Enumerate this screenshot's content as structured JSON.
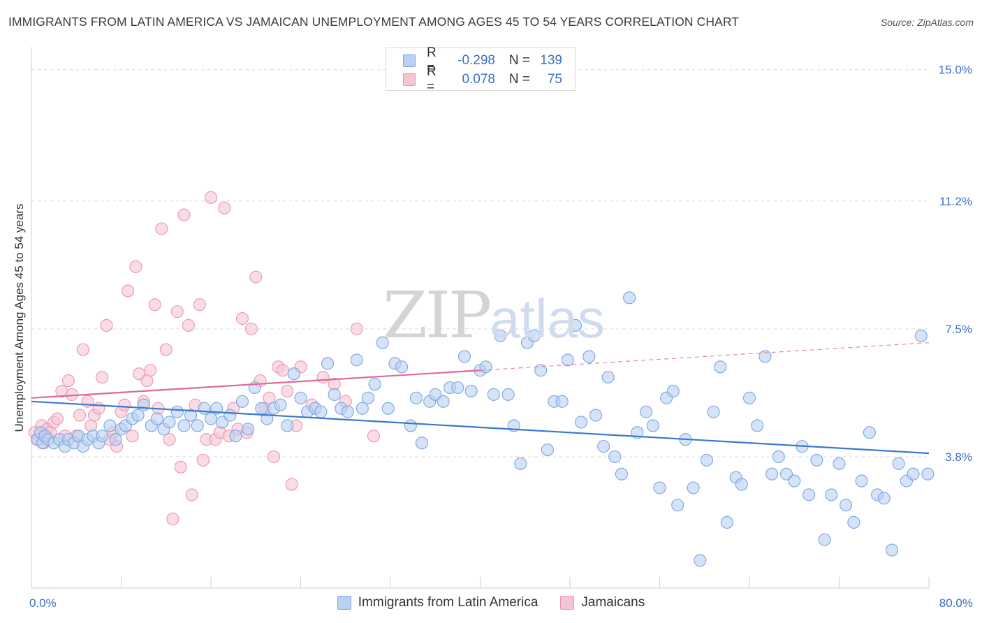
{
  "header": {
    "title": "IMMIGRANTS FROM LATIN AMERICA VS JAMAICAN UNEMPLOYMENT AMONG AGES 45 TO 54 YEARS CORRELATION CHART",
    "source": "Source: ZipAtlas.com"
  },
  "watermark": {
    "zip": "ZIP",
    "atlas": "atlas"
  },
  "legend_top": [
    {
      "r_label": "R =",
      "r_value": "-0.298",
      "n_label": "N =",
      "n_value": "139"
    },
    {
      "r_label": "R =",
      "r_value": "0.078",
      "n_label": "N =",
      "n_value": "75"
    }
  ],
  "colors": {
    "blue_fill": "#b9d1f2",
    "blue_stroke": "#7aa6e0",
    "blue_line": "#3a78d0",
    "pink_fill": "#f6c4d3",
    "pink_stroke": "#ec95b0",
    "pink_line": "#e0689a",
    "axis_text": "#3b6fc7",
    "grid": "#dcdcdc"
  },
  "chart_data": {
    "type": "scatter",
    "title": "IMMIGRANTS FROM LATIN AMERICA VS JAMAICAN UNEMPLOYMENT AMONG AGES 45 TO 54 YEARS CORRELATION CHART",
    "xlabel": "",
    "ylabel": "Unemployment Among Ages 45 to 54 years",
    "xlim": [
      0,
      80
    ],
    "ylim": [
      0,
      15.5
    ],
    "x_tick_labels": [
      "0.0%",
      "80.0%"
    ],
    "y_ticks": [
      3.8,
      7.5,
      11.2,
      15.0
    ],
    "y_tick_labels": [
      "3.8%",
      "7.5%",
      "11.2%",
      "15.0%"
    ],
    "grid": true,
    "legend_position": "bottom",
    "series": [
      {
        "name": "Immigrants from Latin America",
        "color": "#b9d1f2",
        "trend": {
          "x": [
            0,
            80
          ],
          "y": [
            5.4,
            3.9
          ],
          "style": "solid"
        },
        "points": [
          [
            0.5,
            4.3
          ],
          [
            0.8,
            4.5
          ],
          [
            1.0,
            4.2
          ],
          [
            1.2,
            4.4
          ],
          [
            1.5,
            4.3
          ],
          [
            2.0,
            4.2
          ],
          [
            2.5,
            4.3
          ],
          [
            3.0,
            4.1
          ],
          [
            3.3,
            4.3
          ],
          [
            3.8,
            4.2
          ],
          [
            4.2,
            4.4
          ],
          [
            4.6,
            4.1
          ],
          [
            5.0,
            4.3
          ],
          [
            5.5,
            4.4
          ],
          [
            6.0,
            4.2
          ],
          [
            6.3,
            4.4
          ],
          [
            7.0,
            4.7
          ],
          [
            7.5,
            4.3
          ],
          [
            8.0,
            4.6
          ],
          [
            8.4,
            4.7
          ],
          [
            9.0,
            4.9
          ],
          [
            9.5,
            5.0
          ],
          [
            10.0,
            5.3
          ],
          [
            10.7,
            4.7
          ],
          [
            11.2,
            4.9
          ],
          [
            11.8,
            4.6
          ],
          [
            12.3,
            4.8
          ],
          [
            13.0,
            5.1
          ],
          [
            13.6,
            4.7
          ],
          [
            14.2,
            5.0
          ],
          [
            14.8,
            4.7
          ],
          [
            15.4,
            5.2
          ],
          [
            16.0,
            4.9
          ],
          [
            16.5,
            5.2
          ],
          [
            17.0,
            4.8
          ],
          [
            17.7,
            5.0
          ],
          [
            18.2,
            4.4
          ],
          [
            18.8,
            5.4
          ],
          [
            19.3,
            4.6
          ],
          [
            19.9,
            5.8
          ],
          [
            20.5,
            5.2
          ],
          [
            21.0,
            4.9
          ],
          [
            21.6,
            5.2
          ],
          [
            22.2,
            5.3
          ],
          [
            22.8,
            4.7
          ],
          [
            23.4,
            6.2
          ],
          [
            24.0,
            5.5
          ],
          [
            24.6,
            5.1
          ],
          [
            25.3,
            5.2
          ],
          [
            25.8,
            5.1
          ],
          [
            26.4,
            6.5
          ],
          [
            27.0,
            5.6
          ],
          [
            27.6,
            5.2
          ],
          [
            28.2,
            5.1
          ],
          [
            29.0,
            6.6
          ],
          [
            29.5,
            5.2
          ],
          [
            30.0,
            5.5
          ],
          [
            30.6,
            5.9
          ],
          [
            31.3,
            7.1
          ],
          [
            31.8,
            5.2
          ],
          [
            32.4,
            6.5
          ],
          [
            33.0,
            6.4
          ],
          [
            33.8,
            4.7
          ],
          [
            34.3,
            5.5
          ],
          [
            34.8,
            4.2
          ],
          [
            35.5,
            5.4
          ],
          [
            36.0,
            5.6
          ],
          [
            36.7,
            5.4
          ],
          [
            37.3,
            5.8
          ],
          [
            38.0,
            5.8
          ],
          [
            38.6,
            6.7
          ],
          [
            39.2,
            5.7
          ],
          [
            40.0,
            6.3
          ],
          [
            40.5,
            6.4
          ],
          [
            41.2,
            5.6
          ],
          [
            41.8,
            7.3
          ],
          [
            42.5,
            5.6
          ],
          [
            43.0,
            4.7
          ],
          [
            43.6,
            3.6
          ],
          [
            44.2,
            7.1
          ],
          [
            44.8,
            7.3
          ],
          [
            45.4,
            6.3
          ],
          [
            46.0,
            4.0
          ],
          [
            46.6,
            5.4
          ],
          [
            47.3,
            5.4
          ],
          [
            47.8,
            6.6
          ],
          [
            48.5,
            7.6
          ],
          [
            49.0,
            4.8
          ],
          [
            49.7,
            6.7
          ],
          [
            50.3,
            5.0
          ],
          [
            51.0,
            4.1
          ],
          [
            51.4,
            6.1
          ],
          [
            52.0,
            3.8
          ],
          [
            52.6,
            3.3
          ],
          [
            53.3,
            8.4
          ],
          [
            54.0,
            4.5
          ],
          [
            54.8,
            5.1
          ],
          [
            55.4,
            4.7
          ],
          [
            56.0,
            2.9
          ],
          [
            56.6,
            5.5
          ],
          [
            57.2,
            5.7
          ],
          [
            57.6,
            2.4
          ],
          [
            58.3,
            4.3
          ],
          [
            59.0,
            2.9
          ],
          [
            59.6,
            0.8
          ],
          [
            60.2,
            3.7
          ],
          [
            60.8,
            5.1
          ],
          [
            61.4,
            6.4
          ],
          [
            62.0,
            1.9
          ],
          [
            62.8,
            3.2
          ],
          [
            63.3,
            3.0
          ],
          [
            64.0,
            5.5
          ],
          [
            64.7,
            4.7
          ],
          [
            65.4,
            6.7
          ],
          [
            66.0,
            3.3
          ],
          [
            66.6,
            3.8
          ],
          [
            67.3,
            3.3
          ],
          [
            68.0,
            3.1
          ],
          [
            68.7,
            4.1
          ],
          [
            69.3,
            2.7
          ],
          [
            70.0,
            3.7
          ],
          [
            70.7,
            1.4
          ],
          [
            71.3,
            2.7
          ],
          [
            72.0,
            3.6
          ],
          [
            72.6,
            2.4
          ],
          [
            73.3,
            1.9
          ],
          [
            74.0,
            3.1
          ],
          [
            74.7,
            4.5
          ],
          [
            75.4,
            2.7
          ],
          [
            76.0,
            2.6
          ],
          [
            76.7,
            1.1
          ],
          [
            77.3,
            3.6
          ],
          [
            78.0,
            3.1
          ],
          [
            78.6,
            3.3
          ],
          [
            79.3,
            7.3
          ],
          [
            79.9,
            3.3
          ]
        ]
      },
      {
        "name": "Jamaicans",
        "color": "#f6c4d3",
        "trend": {
          "x": [
            0,
            40,
            80
          ],
          "y": [
            5.5,
            6.3,
            7.1
          ],
          "solid_until": 40,
          "style": "solid-then-dashed"
        },
        "points": [
          [
            0.3,
            4.5
          ],
          [
            0.6,
            4.3
          ],
          [
            0.9,
            4.7
          ],
          [
            1.1,
            4.2
          ],
          [
            1.4,
            4.6
          ],
          [
            1.7,
            4.5
          ],
          [
            2.0,
            4.8
          ],
          [
            2.3,
            4.9
          ],
          [
            2.7,
            5.7
          ],
          [
            3.0,
            4.4
          ],
          [
            3.3,
            6.0
          ],
          [
            3.6,
            5.6
          ],
          [
            4.0,
            4.4
          ],
          [
            4.3,
            5.0
          ],
          [
            4.6,
            6.9
          ],
          [
            5.0,
            5.4
          ],
          [
            5.3,
            4.7
          ],
          [
            5.6,
            5.0
          ],
          [
            6.0,
            5.2
          ],
          [
            6.3,
            6.1
          ],
          [
            6.7,
            7.6
          ],
          [
            7.0,
            4.3
          ],
          [
            7.3,
            4.5
          ],
          [
            7.6,
            4.1
          ],
          [
            8.0,
            5.1
          ],
          [
            8.3,
            5.3
          ],
          [
            8.6,
            8.6
          ],
          [
            9.0,
            4.4
          ],
          [
            9.3,
            9.3
          ],
          [
            9.6,
            6.2
          ],
          [
            10.0,
            5.4
          ],
          [
            10.3,
            6.0
          ],
          [
            10.6,
            6.3
          ],
          [
            11.0,
            8.2
          ],
          [
            11.3,
            5.2
          ],
          [
            11.6,
            10.4
          ],
          [
            12.0,
            6.9
          ],
          [
            12.3,
            4.3
          ],
          [
            12.6,
            2.0
          ],
          [
            13.0,
            8.0
          ],
          [
            13.3,
            3.5
          ],
          [
            13.6,
            10.8
          ],
          [
            14.0,
            7.6
          ],
          [
            14.3,
            2.7
          ],
          [
            14.6,
            5.3
          ],
          [
            15.0,
            8.2
          ],
          [
            15.3,
            3.7
          ],
          [
            15.6,
            4.3
          ],
          [
            16.0,
            11.3
          ],
          [
            16.4,
            4.3
          ],
          [
            16.8,
            4.5
          ],
          [
            17.2,
            11.0
          ],
          [
            17.6,
            4.4
          ],
          [
            18.0,
            5.2
          ],
          [
            18.4,
            4.6
          ],
          [
            18.8,
            7.8
          ],
          [
            19.2,
            4.5
          ],
          [
            19.6,
            7.5
          ],
          [
            20.0,
            9.0
          ],
          [
            20.4,
            6.0
          ],
          [
            20.8,
            5.2
          ],
          [
            21.2,
            5.5
          ],
          [
            21.6,
            3.8
          ],
          [
            22.0,
            6.4
          ],
          [
            22.4,
            6.3
          ],
          [
            22.8,
            5.7
          ],
          [
            23.2,
            3.0
          ],
          [
            23.6,
            4.7
          ],
          [
            24.0,
            6.4
          ],
          [
            25.0,
            5.3
          ],
          [
            26.0,
            6.1
          ],
          [
            27.0,
            5.9
          ],
          [
            28.0,
            5.4
          ],
          [
            29.0,
            7.5
          ],
          [
            30.5,
            4.4
          ]
        ]
      }
    ]
  },
  "legend_bottom": [
    {
      "label": "Immigrants from Latin America"
    },
    {
      "label": "Jamaicans"
    }
  ]
}
